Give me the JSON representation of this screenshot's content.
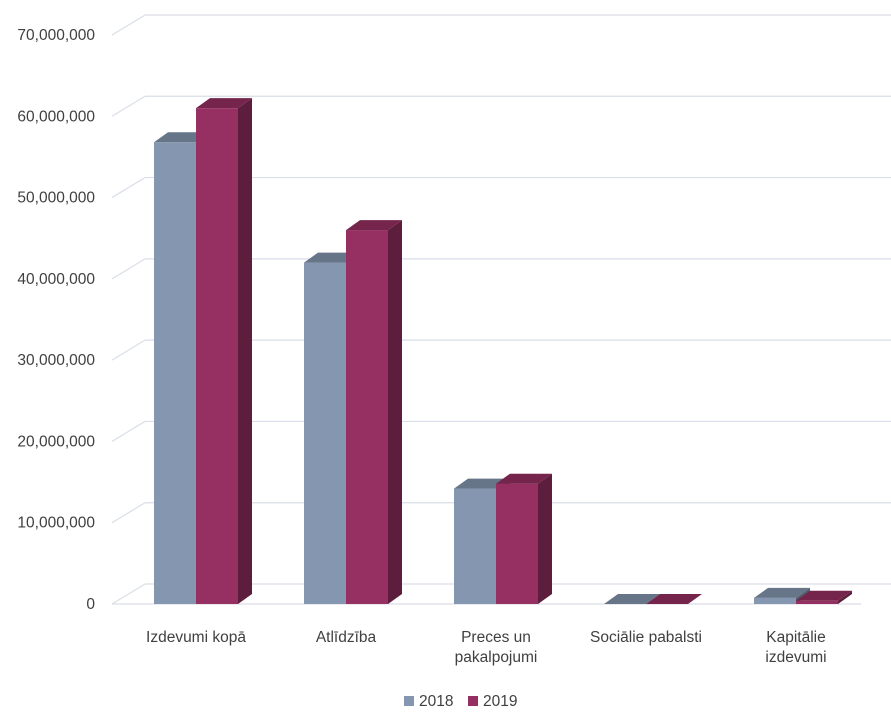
{
  "chart_data": {
    "type": "bar",
    "title": "",
    "xlabel": "",
    "ylabel": "",
    "ylim": [
      0,
      70000000
    ],
    "yticks": [
      0,
      10000000,
      20000000,
      30000000,
      40000000,
      50000000,
      60000000,
      70000000
    ],
    "ytick_labels": [
      "0",
      "10,000,000",
      "20,000,000",
      "30,000,000",
      "40,000,000",
      "50,000,000",
      "60,000,000",
      "70,000,000"
    ],
    "grid": true,
    "legend_position": "bottom",
    "style": "3d-clustered-column",
    "categories": [
      [
        "Izdevumi kopā"
      ],
      [
        "Atlīdzība"
      ],
      [
        "Preces un",
        "pakalpojumi"
      ],
      [
        "Sociālie pabalsti"
      ],
      [
        "Kapitālie",
        "izdevumi"
      ]
    ],
    "series": [
      {
        "name": "2018",
        "color": "#8496b0",
        "values": [
          56800000,
          42000000,
          14200000,
          0,
          750000
        ]
      },
      {
        "name": "2019",
        "color": "#963062",
        "values": [
          61000000,
          46000000,
          14800000,
          0,
          400000
        ]
      }
    ]
  }
}
